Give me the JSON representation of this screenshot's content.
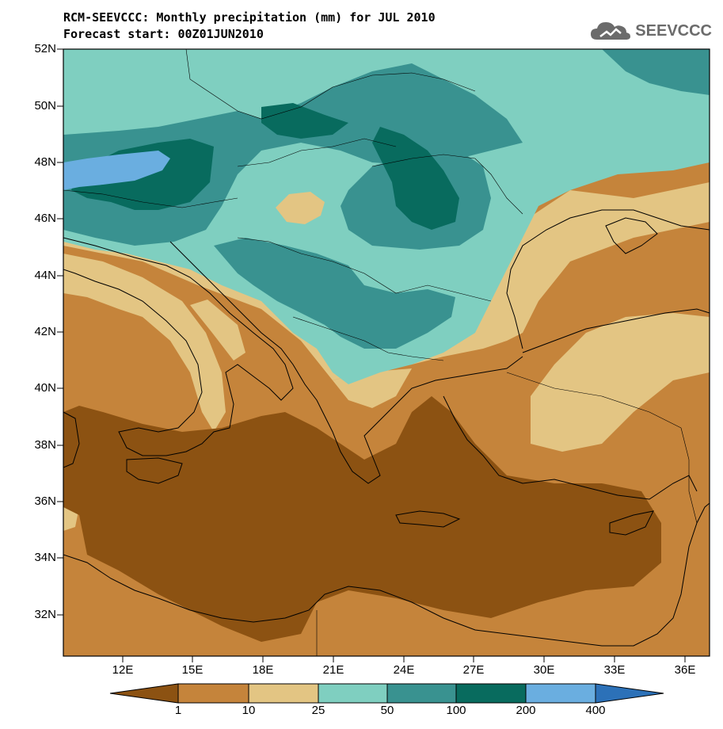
{
  "title_line1": "RCM-SEEVCCC: Monthly precipitation (mm) for JUL 2010",
  "title_line2": "Forecast start: 00Z01JUN2010",
  "logo_text": "SEEVCCC",
  "lat_labels": [
    "52N",
    "50N",
    "48N",
    "46N",
    "44N",
    "42N",
    "40N",
    "38N",
    "36N",
    "34N",
    "32N"
  ],
  "lon_labels": [
    "12E",
    "15E",
    "18E",
    "21E",
    "24E",
    "27E",
    "30E",
    "33E",
    "36E"
  ],
  "colorbar": {
    "labels": [
      "1",
      "10",
      "25",
      "50",
      "100",
      "200",
      "400"
    ],
    "colors": [
      "#8c5212",
      "#c5843b",
      "#e3c583",
      "#7fcfc0",
      "#399290",
      "#086b5e",
      "#6aaee0",
      "#2c71b8"
    ]
  },
  "palette": {
    "ocean_low": "#8c5212",
    "land_low": "#c5843b",
    "dry": "#e3c583",
    "moist": "#7fcfc0",
    "wet": "#399290",
    "very_wet": "#086b5e",
    "extreme": "#6aaee0"
  }
}
